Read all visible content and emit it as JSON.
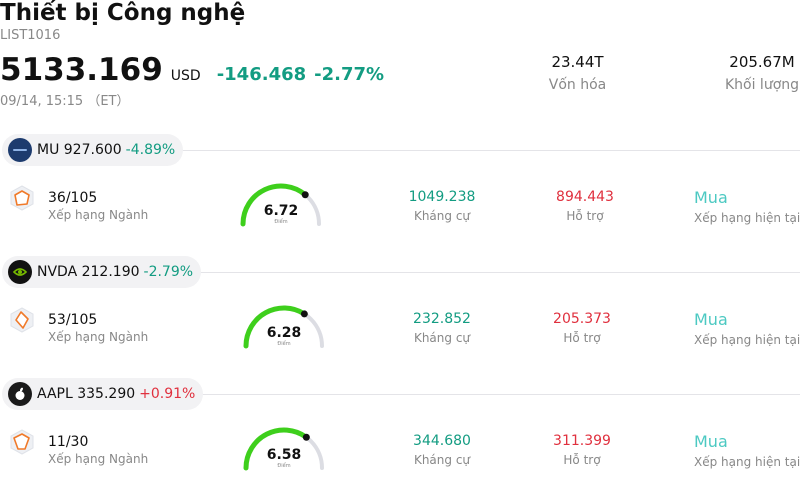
{
  "header": {
    "title": "Thiết bị Công nghệ",
    "code": "LIST1016",
    "price": "5133.169",
    "currency": "USD",
    "change": "-146.468",
    "change_pct": "-2.77%",
    "timestamp": "09/14, 15:15 （ET）"
  },
  "stats": {
    "market_cap_value": "23.44T",
    "market_cap_label": "Vốn hóa",
    "volume_value": "205.67M",
    "volume_label": "Khối lượng"
  },
  "colors": {
    "negative": "#139c82",
    "positive": "#e0303e",
    "recommendation": "#4cc9c2",
    "gauge_fill": "#3ecf1c",
    "gauge_track": "#dcdde3"
  },
  "stocks": [
    {
      "ticker_line": "MU 927.600",
      "pct": "-4.89%",
      "direction": "neg",
      "logo_icon": "micron-logo-icon",
      "rank": "36/105",
      "rank_label": "Xếp hạng Ngành",
      "score": "6.72",
      "score_fraction": 0.72,
      "score_label": "Điểm",
      "resistance": "1049.238",
      "resistance_label": "Kháng cự",
      "support": "894.443",
      "support_label": "Hỗ trợ",
      "rating": "Mua",
      "rating_label": "Xếp hạng hiện tại"
    },
    {
      "ticker_line": "NVDA 212.190",
      "pct": "-2.79%",
      "direction": "neg",
      "logo_icon": "nvidia-logo-icon",
      "rank": "53/105",
      "rank_label": "Xếp hạng Ngành",
      "score": "6.28",
      "score_fraction": 0.68,
      "score_label": "Điểm",
      "resistance": "232.852",
      "resistance_label": "Kháng cự",
      "support": "205.373",
      "support_label": "Hỗ trợ",
      "rating": "Mua",
      "rating_label": "Xếp hạng hiện tại"
    },
    {
      "ticker_line": "AAPL 335.290",
      "pct": "+0.91%",
      "direction": "pos",
      "logo_icon": "apple-logo-icon",
      "rank": "11/30",
      "rank_label": "Xếp hạng Ngành",
      "score": "6.58",
      "score_fraction": 0.7,
      "score_label": "Điểm",
      "resistance": "344.680",
      "resistance_label": "Kháng cự",
      "support": "311.399",
      "support_label": "Hỗ trợ",
      "rating": "Mua",
      "rating_label": "Xếp hạng hiện tại"
    }
  ]
}
